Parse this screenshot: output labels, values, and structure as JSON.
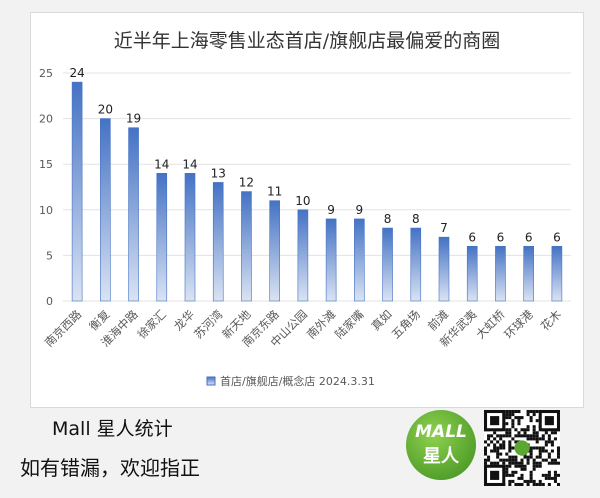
{
  "chart_data": {
    "type": "bar",
    "title": "近半年上海零售业态首店/旗舰店最偏爱的商圈",
    "categories": [
      "南京西路",
      "衡复",
      "淮海中路",
      "徐家汇",
      "龙华",
      "苏河湾",
      "新天地",
      "南京东路",
      "中山公园",
      "南外滩",
      "陆家嘴",
      "真如",
      "五角场",
      "前滩",
      "新华武夷",
      "大虹桥",
      "环球港",
      "花木"
    ],
    "series": [
      {
        "name": "首店/旗舰店/概念店 2024.3.31",
        "values": [
          24,
          20,
          19,
          14,
          14,
          13,
          12,
          11,
          10,
          9,
          9,
          8,
          8,
          7,
          6,
          6,
          6,
          6
        ]
      }
    ],
    "ylim": [
      0,
      25
    ],
    "yticks": [
      0,
      5,
      10,
      15,
      20,
      25
    ],
    "grid": true,
    "legend": "bottom",
    "colors": {
      "bar_top": "#4472c4",
      "bar_bottom": "#dae3f3"
    }
  },
  "footer": {
    "brand": "Mall 星人统计",
    "note": "如有错漏，欢迎指正",
    "logo_text_1": "MALL",
    "logo_text_2": "星人"
  }
}
